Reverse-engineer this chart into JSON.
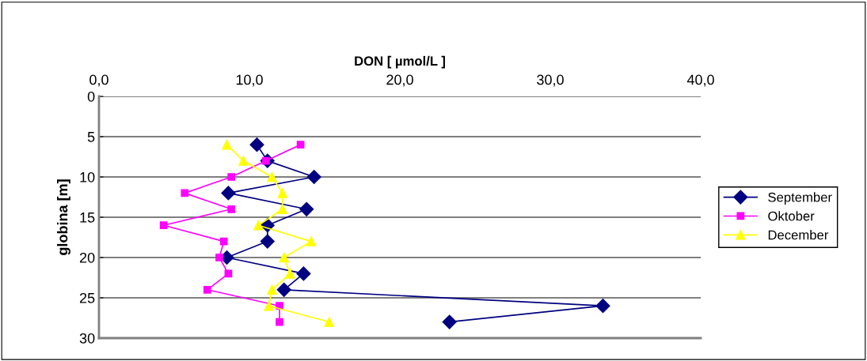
{
  "chart_data": {
    "type": "line",
    "xlabel": "DON [ µmol/L ]",
    "ylabel": "globina [m]",
    "xlim": [
      0,
      40
    ],
    "xticks": [
      {
        "value": 0,
        "label": "0,0"
      },
      {
        "value": 10,
        "label": "10,0"
      },
      {
        "value": 20,
        "label": "20,0"
      },
      {
        "value": 30,
        "label": "30,0"
      },
      {
        "value": 40,
        "label": "40,0"
      }
    ],
    "ylim": [
      30,
      0
    ],
    "yticks": [
      0,
      5,
      10,
      15,
      20,
      25,
      30
    ],
    "grid": "y",
    "legend": "right",
    "series": [
      {
        "name": "September",
        "color": "#000080",
        "marker": "diamond",
        "x": [
          10.5,
          11.2,
          14.3,
          8.6,
          13.8,
          11.2,
          11.2,
          8.5,
          13.6,
          12.3,
          33.5,
          23.3
        ],
        "values": [
          6,
          8,
          10,
          12,
          14,
          16,
          18,
          20,
          22,
          24,
          26,
          28
        ]
      },
      {
        "name": "Oktober",
        "color": "#ff00ff",
        "marker": "square",
        "x": [
          13.4,
          11.1,
          8.8,
          5.7,
          8.8,
          4.3,
          8.3,
          8.0,
          8.6,
          7.2,
          12.0,
          12.0
        ],
        "values": [
          6,
          8,
          10,
          12,
          14,
          16,
          18,
          20,
          22,
          24,
          26,
          28
        ]
      },
      {
        "name": "December",
        "color": "#ffff00",
        "marker": "triangle",
        "x": [
          8.5,
          9.6,
          11.5,
          12.2,
          12.2,
          10.6,
          14.1,
          12.3,
          12.7,
          11.5,
          11.3,
          15.3
        ],
        "values": [
          6,
          8,
          10,
          12,
          14,
          16,
          18,
          20,
          22,
          24,
          26,
          28
        ]
      }
    ]
  }
}
